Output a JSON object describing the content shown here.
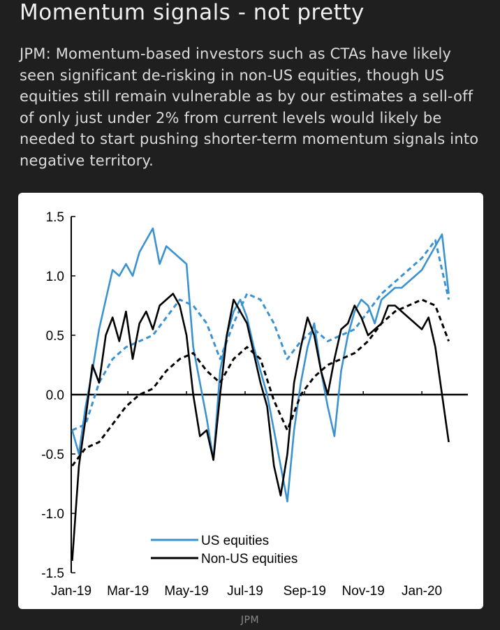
{
  "header": {
    "title": "Momentum signals - not pretty",
    "description": "JPM: Momentum-based investors such as CTAs have likely seen significant de-risking in non-US equities, though US equities still remain vulnerable as by our estimates a sell-off of only just under 2% from current levels would likely be needed to start pushing shorter-term momentum signals into negative territory."
  },
  "source": "JPM",
  "colors": {
    "us": "#3a93d0",
    "nonus": "#000000",
    "background": "#1f1f1f"
  },
  "chart_data": {
    "type": "line",
    "title": "",
    "xlabel": "",
    "ylabel": "",
    "ylim": [
      -1.5,
      1.5
    ],
    "yticks": [
      "1.5",
      "1.0",
      "0.5",
      "0.0",
      "-0.5",
      "-1.0",
      "-1.5"
    ],
    "xticks": [
      "Jan-19",
      "Mar-19",
      "May-19",
      "Jul-19",
      "Sep-19",
      "Nov-19",
      "Jan-20"
    ],
    "legend": {
      "placement": "bottom-center",
      "entries": [
        "US equities",
        "Non-US equities"
      ]
    },
    "series": [
      {
        "name": "US equities",
        "style": "solid",
        "color": "#3a93d0",
        "x": [
          "2019-01-02",
          "2019-01-09",
          "2019-01-16",
          "2019-01-23",
          "2019-01-30",
          "2019-02-06",
          "2019-02-13",
          "2019-02-20",
          "2019-02-27",
          "2019-03-06",
          "2019-03-13",
          "2019-03-20",
          "2019-03-27",
          "2019-04-03",
          "2019-04-10",
          "2019-04-17",
          "2019-04-24",
          "2019-05-01",
          "2019-05-08",
          "2019-05-15",
          "2019-05-22",
          "2019-05-29",
          "2019-06-05",
          "2019-06-12",
          "2019-06-19",
          "2019-06-26",
          "2019-07-03",
          "2019-07-10",
          "2019-07-17",
          "2019-07-24",
          "2019-07-31",
          "2019-08-07",
          "2019-08-14",
          "2019-08-21",
          "2019-08-28",
          "2019-09-04",
          "2019-09-11",
          "2019-09-18",
          "2019-09-25",
          "2019-10-02",
          "2019-10-09",
          "2019-10-16",
          "2019-10-23",
          "2019-10-30",
          "2019-11-06",
          "2019-11-13",
          "2019-11-20",
          "2019-11-27",
          "2019-12-04",
          "2019-12-11",
          "2019-12-18",
          "2019-12-25",
          "2020-01-01",
          "2020-01-08",
          "2020-01-15",
          "2020-01-22",
          "2020-01-29"
        ],
        "values": [
          -0.3,
          -0.5,
          -0.1,
          0.2,
          0.55,
          0.8,
          1.05,
          1.0,
          1.1,
          1.0,
          1.2,
          1.3,
          1.4,
          1.1,
          1.25,
          1.2,
          1.15,
          1.1,
          0.4,
          0.1,
          -0.2,
          -0.55,
          0.2,
          0.5,
          0.7,
          0.8,
          0.65,
          0.4,
          0.2,
          0.0,
          -0.3,
          -0.6,
          -0.9,
          -0.3,
          0.1,
          0.4,
          0.6,
          0.2,
          -0.1,
          -0.35,
          0.2,
          0.5,
          0.7,
          0.8,
          0.75,
          0.6,
          0.8,
          0.85,
          0.9,
          0.9,
          0.95,
          1.0,
          1.05,
          1.15,
          1.25,
          1.35,
          0.85
        ]
      },
      {
        "name": "",
        "style": "dashed",
        "color": "#3a93d0",
        "x": [
          "2019-01-02",
          "2019-01-16",
          "2019-01-30",
          "2019-02-13",
          "2019-02-27",
          "2019-03-13",
          "2019-03-27",
          "2019-04-10",
          "2019-04-24",
          "2019-05-08",
          "2019-05-22",
          "2019-06-05",
          "2019-06-19",
          "2019-07-03",
          "2019-07-17",
          "2019-07-31",
          "2019-08-14",
          "2019-08-28",
          "2019-09-11",
          "2019-09-25",
          "2019-10-09",
          "2019-10-23",
          "2019-11-06",
          "2019-11-20",
          "2019-12-04",
          "2019-12-18",
          "2020-01-01",
          "2020-01-15",
          "2020-01-29"
        ],
        "values": [
          -0.3,
          -0.25,
          0.1,
          0.3,
          0.4,
          0.45,
          0.5,
          0.65,
          0.8,
          0.75,
          0.6,
          0.3,
          0.6,
          0.85,
          0.8,
          0.6,
          0.3,
          0.45,
          0.55,
          0.45,
          0.5,
          0.55,
          0.7,
          0.85,
          0.95,
          1.05,
          1.15,
          1.3,
          0.8
        ]
      },
      {
        "name": "Non-US equities",
        "style": "solid",
        "color": "#000000",
        "x": [
          "2019-01-02",
          "2019-01-09",
          "2019-01-16",
          "2019-01-23",
          "2019-01-30",
          "2019-02-06",
          "2019-02-13",
          "2019-02-20",
          "2019-02-27",
          "2019-03-06",
          "2019-03-13",
          "2019-03-20",
          "2019-03-27",
          "2019-04-03",
          "2019-04-10",
          "2019-04-17",
          "2019-04-24",
          "2019-05-01",
          "2019-05-08",
          "2019-05-15",
          "2019-05-22",
          "2019-05-29",
          "2019-06-05",
          "2019-06-12",
          "2019-06-19",
          "2019-06-26",
          "2019-07-03",
          "2019-07-10",
          "2019-07-17",
          "2019-07-24",
          "2019-07-31",
          "2019-08-07",
          "2019-08-14",
          "2019-08-21",
          "2019-08-28",
          "2019-09-04",
          "2019-09-11",
          "2019-09-18",
          "2019-09-25",
          "2019-10-02",
          "2019-10-09",
          "2019-10-16",
          "2019-10-23",
          "2019-10-30",
          "2019-11-06",
          "2019-11-13",
          "2019-11-20",
          "2019-11-27",
          "2019-12-04",
          "2019-12-11",
          "2019-12-18",
          "2019-12-25",
          "2020-01-01",
          "2020-01-08",
          "2020-01-15",
          "2020-01-22",
          "2020-01-29"
        ],
        "values": [
          -1.4,
          -0.6,
          -0.2,
          0.25,
          0.1,
          0.5,
          0.65,
          0.45,
          0.7,
          0.3,
          0.6,
          0.7,
          0.55,
          0.75,
          0.8,
          0.85,
          0.75,
          0.5,
          0.0,
          -0.35,
          -0.3,
          -0.55,
          0.0,
          0.5,
          0.8,
          0.7,
          0.6,
          0.35,
          0.1,
          -0.1,
          -0.6,
          -0.85,
          -0.5,
          0.1,
          0.4,
          0.65,
          0.5,
          0.2,
          0.0,
          0.3,
          0.55,
          0.6,
          0.75,
          0.65,
          0.5,
          0.55,
          0.6,
          0.75,
          0.75,
          0.7,
          0.65,
          0.6,
          0.55,
          0.65,
          0.4,
          0.0,
          -0.4
        ]
      },
      {
        "name": "",
        "style": "dashed",
        "color": "#000000",
        "x": [
          "2019-01-02",
          "2019-01-16",
          "2019-01-30",
          "2019-02-13",
          "2019-02-27",
          "2019-03-13",
          "2019-03-27",
          "2019-04-10",
          "2019-04-24",
          "2019-05-08",
          "2019-05-22",
          "2019-06-05",
          "2019-06-19",
          "2019-07-03",
          "2019-07-17",
          "2019-07-31",
          "2019-08-14",
          "2019-08-28",
          "2019-09-11",
          "2019-09-25",
          "2019-10-09",
          "2019-10-23",
          "2019-11-06",
          "2019-11-20",
          "2019-12-04",
          "2019-12-18",
          "2020-01-01",
          "2020-01-15",
          "2020-01-29"
        ],
        "values": [
          -0.6,
          -0.45,
          -0.4,
          -0.25,
          -0.1,
          0.0,
          0.05,
          0.2,
          0.3,
          0.35,
          0.2,
          0.1,
          0.3,
          0.4,
          0.3,
          -0.05,
          -0.3,
          0.0,
          0.15,
          0.25,
          0.3,
          0.35,
          0.45,
          0.6,
          0.7,
          0.75,
          0.8,
          0.75,
          0.45
        ]
      }
    ]
  }
}
